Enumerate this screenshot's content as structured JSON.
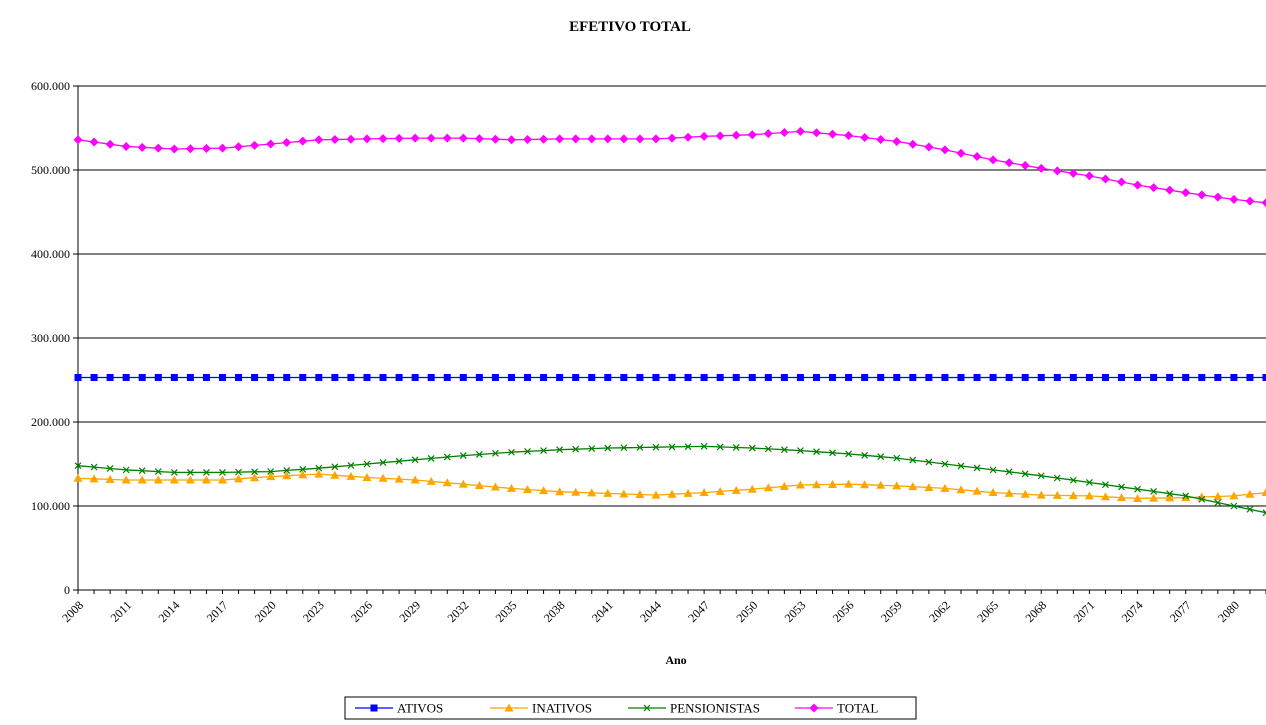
{
  "chart_data": {
    "type": "line",
    "title": "EFETIVO TOTAL",
    "xlabel": "Ano",
    "ylabel": "",
    "ylim": [
      0,
      600000
    ],
    "y_ticks": [
      0,
      100000,
      200000,
      300000,
      400000,
      500000,
      600000
    ],
    "y_tick_labels": [
      "0",
      "100.000",
      "200.000",
      "300.000",
      "400.000",
      "500.000",
      "600.000"
    ],
    "x_start": 2008,
    "x_end": 2082,
    "x_ticks": [
      2008,
      2011,
      2014,
      2017,
      2020,
      2023,
      2026,
      2029,
      2032,
      2035,
      2038,
      2041,
      2044,
      2047,
      2050,
      2053,
      2056,
      2059,
      2062,
      2065,
      2068,
      2071,
      2074,
      2077,
      2080
    ],
    "x_tick_labels": [
      "2008",
      "2011",
      "2014",
      "2017",
      "2020",
      "2023",
      "2026",
      "2029",
      "2032",
      "2035",
      "2038",
      "2041",
      "2044",
      "2047",
      "2050",
      "2053",
      "2056",
      "2059",
      "2062",
      "2065",
      "2068",
      "2071",
      "2074",
      "2077",
      "2080"
    ],
    "grid": "horizontal",
    "legend_position": "bottom",
    "series": [
      {
        "name": "ATIVOS",
        "color": "#0000ff",
        "marker": "square",
        "x": [
          2008,
          2082
        ],
        "y": [
          253000,
          253000
        ],
        "constant": true
      },
      {
        "name": "INATIVOS",
        "color": "#ffa500",
        "marker": "triangle",
        "x": [
          2008,
          2011,
          2014,
          2017,
          2020,
          2023,
          2026,
          2029,
          2032,
          2035,
          2038,
          2041,
          2044,
          2047,
          2050,
          2053,
          2056,
          2059,
          2062,
          2065,
          2068,
          2071,
          2074,
          2077,
          2080,
          2082
        ],
        "y": [
          133000,
          131000,
          131000,
          131000,
          135000,
          138000,
          134000,
          131000,
          126000,
          121000,
          117000,
          115000,
          113000,
          116000,
          120000,
          125000,
          126000,
          124000,
          121000,
          116000,
          113000,
          112000,
          109000,
          110000,
          112000,
          116000
        ]
      },
      {
        "name": "PENSIONISTAS",
        "color": "#008000",
        "marker": "x",
        "x": [
          2008,
          2011,
          2014,
          2017,
          2020,
          2023,
          2026,
          2029,
          2032,
          2035,
          2038,
          2041,
          2044,
          2047,
          2050,
          2053,
          2056,
          2059,
          2062,
          2065,
          2068,
          2071,
          2074,
          2077,
          2080,
          2082
        ],
        "y": [
          148000,
          143000,
          140000,
          140000,
          141000,
          145000,
          150000,
          155000,
          160000,
          164000,
          167000,
          169000,
          170000,
          171000,
          169000,
          166000,
          162000,
          157000,
          150000,
          143000,
          136000,
          128000,
          120000,
          112000,
          100000,
          92000
        ]
      },
      {
        "name": "TOTAL",
        "color": "#ff00ff",
        "marker": "diamond",
        "x": [
          2008,
          2011,
          2014,
          2017,
          2020,
          2023,
          2026,
          2029,
          2032,
          2035,
          2038,
          2041,
          2044,
          2047,
          2050,
          2053,
          2056,
          2059,
          2062,
          2065,
          2068,
          2071,
          2074,
          2077,
          2080,
          2082
        ],
        "y": [
          536000,
          528000,
          525000,
          526000,
          531000,
          536000,
          537000,
          538000,
          538000,
          536000,
          537000,
          537000,
          537000,
          540000,
          542000,
          546000,
          541000,
          534000,
          524000,
          512000,
          502000,
          493000,
          482000,
          473000,
          465000,
          461000
        ]
      }
    ]
  }
}
